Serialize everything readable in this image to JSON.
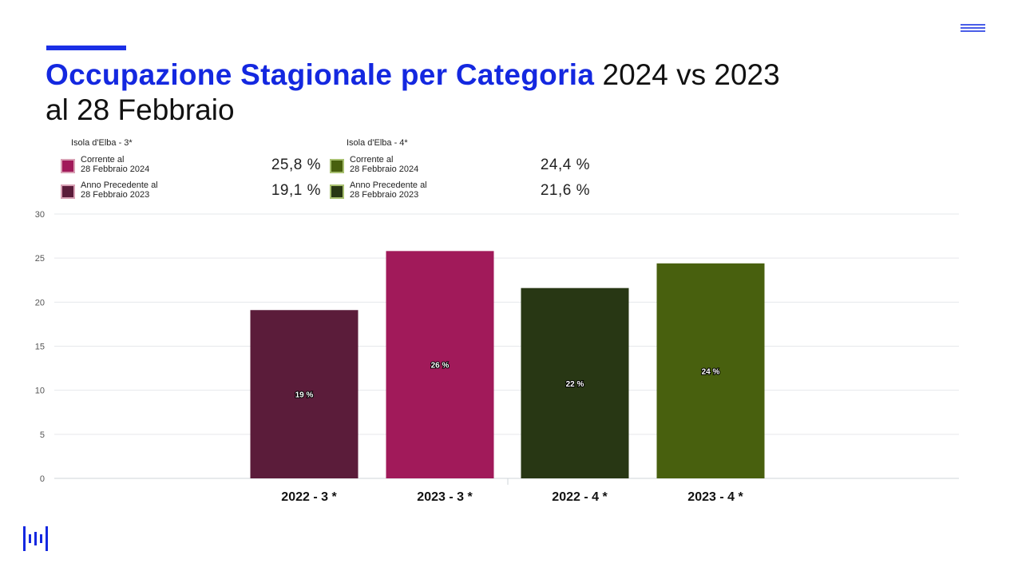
{
  "header": {
    "title_bold": "Occupazione Stagionale per Categoria",
    "title_rest": " 2024 vs 2023",
    "title_line2": "al 28 Febbraio"
  },
  "legend": {
    "group_3": {
      "title": "Isola d'Elba - 3*",
      "items": [
        {
          "label": "Corrente al\n28 Febbraio 2024",
          "value": "25,8 %",
          "color": "#a11a5a"
        },
        {
          "label": "Anno Precedente al\n28 Febbraio 2023",
          "value": "19,1 %",
          "color": "#5b1c3a"
        }
      ]
    },
    "group_4": {
      "title": "Isola d'Elba - 4*",
      "items": [
        {
          "label": "Corrente al\n28 Febbraio 2024",
          "value": "24,4 %",
          "color": "#48600e"
        },
        {
          "label": "Anno Precedente al\n28 Febbraio 2023",
          "value": "21,6 %",
          "color": "#283714"
        }
      ]
    }
  },
  "chart_data": {
    "type": "bar",
    "categories": [
      "2022 - 3 *",
      "2023 - 3 *",
      "2022 - 4 *",
      "2023 - 4 *"
    ],
    "values": [
      19.1,
      25.8,
      21.6,
      24.4
    ],
    "data_labels": [
      "19 %",
      "26 %",
      "22 %",
      "24 %"
    ],
    "colors": [
      "#5b1c3a",
      "#a11a5a",
      "#283714",
      "#48600e"
    ],
    "ylim": [
      0,
      30
    ],
    "yticks": [
      0,
      5,
      10,
      15,
      20,
      25,
      30
    ],
    "grid": true
  },
  "icons": {
    "menu": "menu-lines-icon",
    "logo": "brand-logo-icon"
  },
  "colors": {
    "accent": "#1428e0"
  }
}
